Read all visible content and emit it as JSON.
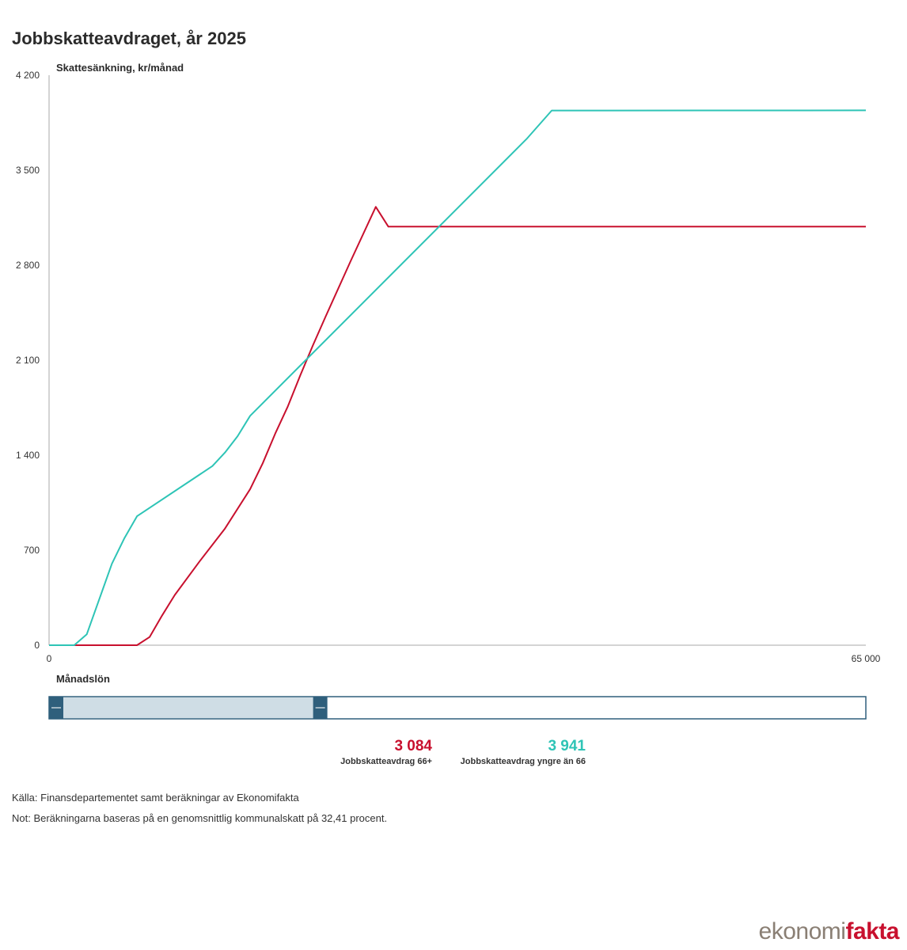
{
  "title": "Jobbskatteavdraget, år 2025",
  "colors": {
    "red": "#c8102e",
    "teal": "#2ec4b6",
    "axis": "#aaaaaa",
    "slider": "#2f5f7c",
    "slider_fill": "#cfdde5"
  },
  "chart_data": {
    "type": "line",
    "ylabel": "Skattesänkning, kr/månad",
    "xlabel": "Månadslön",
    "xlim": [
      0,
      65000
    ],
    "ylim": [
      0,
      4200
    ],
    "x_ticks": [
      "0",
      "65 000"
    ],
    "y_ticks": [
      {
        "value": 0,
        "label": "0"
      },
      {
        "value": 700,
        "label": "700"
      },
      {
        "value": 1400,
        "label": "1 400"
      },
      {
        "value": 2100,
        "label": "2 100"
      },
      {
        "value": 2800,
        "label": "2 800"
      },
      {
        "value": 3500,
        "label": "3 500"
      },
      {
        "value": 4200,
        "label": "4 200"
      }
    ],
    "series": [
      {
        "name": "Jobbskatteavdrag 66+",
        "color": "#c8102e",
        "points": [
          [
            0,
            0
          ],
          [
            7000,
            0
          ],
          [
            8000,
            60
          ],
          [
            9000,
            220
          ],
          [
            10000,
            370
          ],
          [
            12000,
            620
          ],
          [
            14000,
            860
          ],
          [
            16000,
            1150
          ],
          [
            17000,
            1340
          ],
          [
            18000,
            1560
          ],
          [
            19000,
            1760
          ],
          [
            20000,
            1990
          ],
          [
            21000,
            2210
          ],
          [
            22000,
            2420
          ],
          [
            24000,
            2830
          ],
          [
            26000,
            3230
          ],
          [
            27000,
            3084
          ],
          [
            65000,
            3084
          ]
        ]
      },
      {
        "name": "Jobbskatteavdrag yngre än 66",
        "color": "#2ec4b6",
        "points": [
          [
            0,
            0
          ],
          [
            2000,
            0
          ],
          [
            3000,
            80
          ],
          [
            4000,
            340
          ],
          [
            5000,
            600
          ],
          [
            6000,
            790
          ],
          [
            7000,
            950
          ],
          [
            13000,
            1320
          ],
          [
            14000,
            1420
          ],
          [
            15000,
            1540
          ],
          [
            16000,
            1690
          ],
          [
            38000,
            3730
          ],
          [
            40000,
            3940
          ],
          [
            65000,
            3941
          ]
        ]
      }
    ],
    "grid": false,
    "legend_placement": "bottom"
  },
  "legend": {
    "red_value": "3 084",
    "red_label": "Jobbskatteavdrag 66+",
    "teal_value": "3 941",
    "teal_label": "Jobbskatteavdrag yngre än 66"
  },
  "range_slider": {
    "start_fraction": 0.0,
    "end_fraction": 0.332
  },
  "footer": {
    "source": "Källa: Finansdepartementet samt beräkningar av Ekonomifakta",
    "note": "Not: Beräkningarna baseras på en genomsnittlig kommunalskatt på 32,41 procent."
  },
  "logo": {
    "part1": "ekonomi",
    "part2": "fakta"
  }
}
